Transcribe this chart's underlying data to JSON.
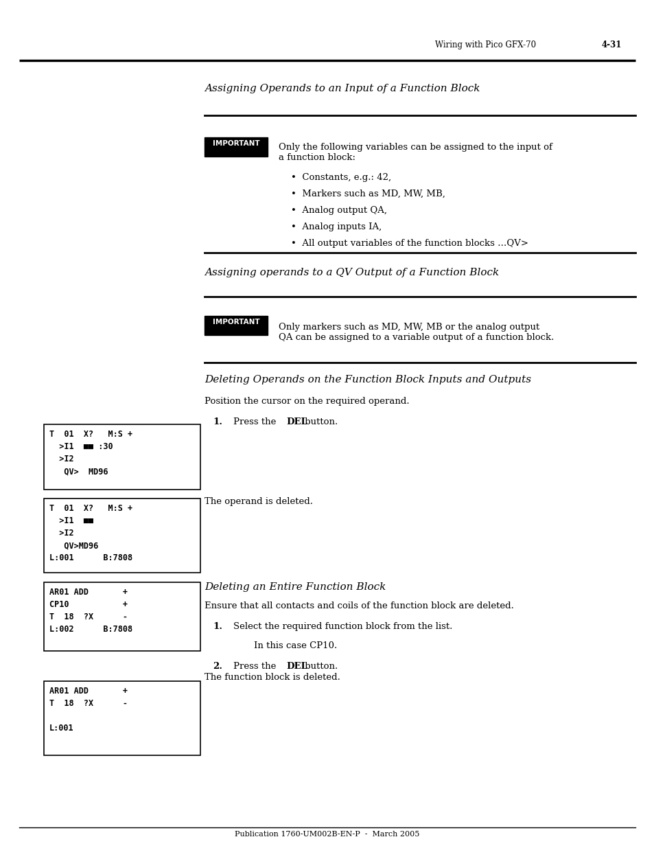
{
  "page_bg": "#ffffff",
  "header_text": "Wiring with Pico GFX-70",
  "header_page": "4-31",
  "footer_text": "Publication 1760-UM002B-EN-P  -  March 2005",
  "section1_title": "Assigning Operands to an Input of a Function Block",
  "important1_label": "IMPORTANT",
  "important1_text": "Only the following variables can be assigned to the input of\na function block:",
  "important1_bullets": [
    "Constants, e.g.: 42,",
    "Markers such as MD, MW, MB,",
    "Analog output QA,",
    "Analog inputs IA,",
    "All output variables of the function blocks …QV>"
  ],
  "section2_title": "Assigning operands to a QV Output of a Function Block",
  "important2_label": "IMPORTANT",
  "important2_text": "Only markers such as MD, MW, MB or the analog output\nQA can be assigned to a variable output of a function block.",
  "section3_title": "Deleting Operands on the Function Block Inputs and Outputs",
  "pos_cursor_text": "Position the cursor on the required operand.",
  "box1_lines": [
    "T  01  X?   M:S +",
    "  >I1  ■■ :30",
    "  >I2",
    "   QV>  MD96"
  ],
  "operand_deleted_text": "The operand is deleted.",
  "box2_lines": [
    "T  01  X?   M:S +",
    "  >I1  ■■",
    "  >I2",
    "   QV>MD96",
    "L:001      B:7808"
  ],
  "section4_title": "Deleting an Entire Function Block",
  "ensure_text": "Ensure that all contacts and coils of the function block are deleted.",
  "step4_1_text": "Select the required function block from the list.",
  "in_case_text": "In this case CP10.",
  "func_deleted_text": "The function block is deleted.",
  "box3_lines": [
    "AR01 ADD       +",
    "CP10           +",
    "T  18  ?X      -",
    "L:002      B:7808"
  ],
  "box4_lines": [
    "AR01 ADD       +",
    "T  18  ?X      -",
    "",
    "L:001"
  ]
}
